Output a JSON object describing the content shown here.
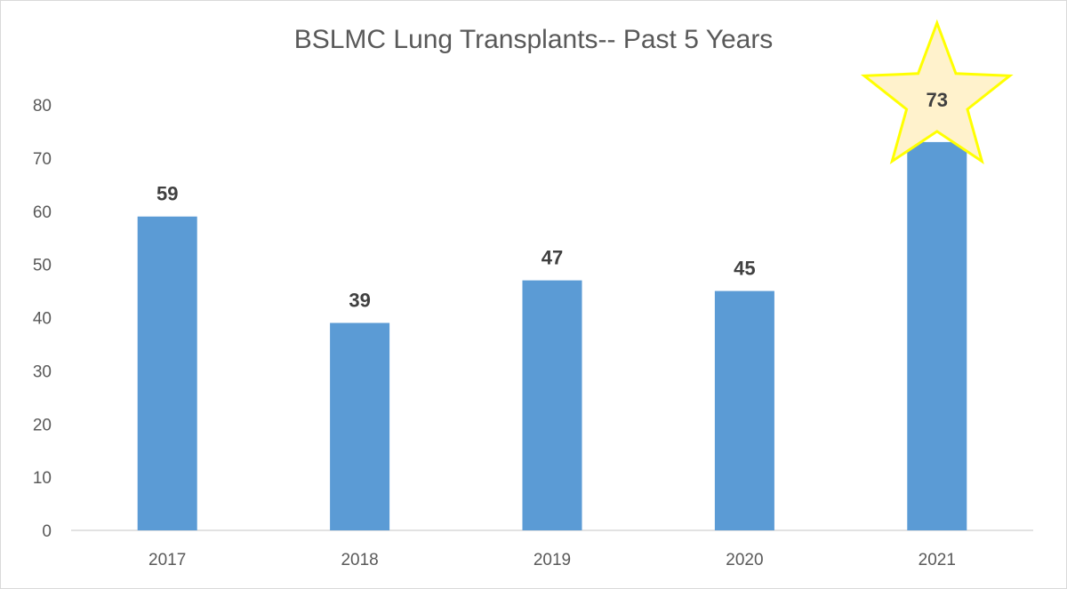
{
  "chart_data": {
    "type": "bar",
    "title": "BSLMC Lung Transplants-- Past 5 Years",
    "xlabel": "",
    "ylabel": "",
    "categories": [
      "2017",
      "2018",
      "2019",
      "2020",
      "2021"
    ],
    "values": [
      59,
      39,
      47,
      45,
      73
    ],
    "ylim": [
      0,
      80
    ],
    "yticks": [
      0,
      10,
      20,
      30,
      40,
      50,
      60,
      70,
      80
    ],
    "grid": false,
    "legend": "none",
    "highlight": {
      "category": "2021",
      "marker": "star"
    },
    "colors": {
      "bar": "#5b9bd5",
      "label": "#404040",
      "axis_text": "#595959",
      "axis_line": "#d9d9d9",
      "star_fill": "#fff2cc",
      "star_stroke": "#ffff00"
    }
  }
}
